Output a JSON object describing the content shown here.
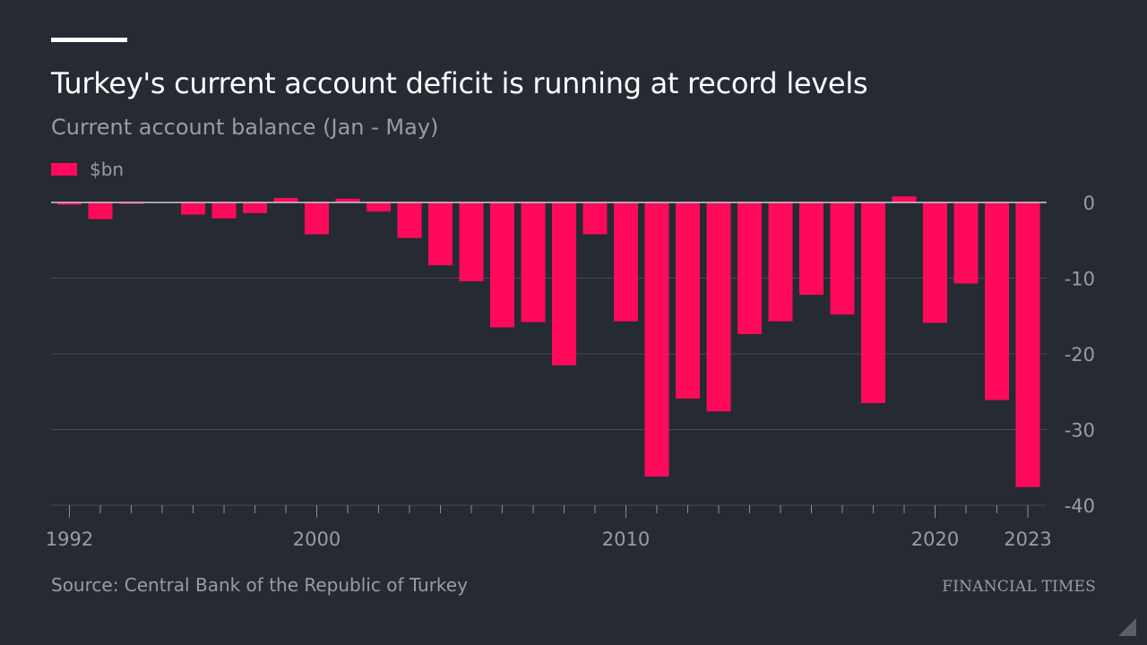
{
  "header": {
    "title": "Turkey's current account deficit is running at record levels",
    "subtitle": "Current account balance (Jan - May)"
  },
  "legend": {
    "label": "$bn"
  },
  "footer": {
    "source": "Source: Central Bank of the Republic of Turkey",
    "publisher": "FINANCIAL TIMES"
  },
  "colors": {
    "background": "#262a33",
    "bar": "#ff0a5a",
    "grid": "#474b53",
    "text_muted": "#9a9ca3"
  },
  "chart_data": {
    "type": "bar",
    "title": "Turkey's current account deficit is running at record levels",
    "subtitle": "Current account balance (Jan - May)",
    "xlabel": "",
    "ylabel": "$bn",
    "ylim": [
      -40,
      0
    ],
    "yticks": [
      0,
      -10,
      -20,
      -30,
      -40
    ],
    "xticks": [
      1992,
      2000,
      2010,
      2020,
      2023
    ],
    "grid": true,
    "legend": "top-left",
    "categories": [
      1992,
      1993,
      1994,
      1995,
      1996,
      1997,
      1998,
      1999,
      2000,
      2001,
      2002,
      2003,
      2004,
      2005,
      2006,
      2007,
      2008,
      2009,
      2010,
      2011,
      2012,
      2013,
      2014,
      2015,
      2016,
      2017,
      2018,
      2019,
      2020,
      2021,
      2022,
      2023
    ],
    "series": [
      {
        "name": "$bn",
        "values": [
          -0.3,
          -2.2,
          -0.2,
          0.0,
          -1.6,
          -2.1,
          -1.4,
          0.6,
          -4.2,
          0.5,
          -1.2,
          -4.7,
          -8.3,
          -10.4,
          -16.5,
          -15.8,
          -21.5,
          -4.2,
          -15.7,
          -36.2,
          -25.9,
          -27.6,
          -17.4,
          -15.7,
          -12.2,
          -14.8,
          -26.5,
          0.8,
          -15.9,
          -10.7,
          -26.1,
          -37.6
        ]
      }
    ]
  }
}
